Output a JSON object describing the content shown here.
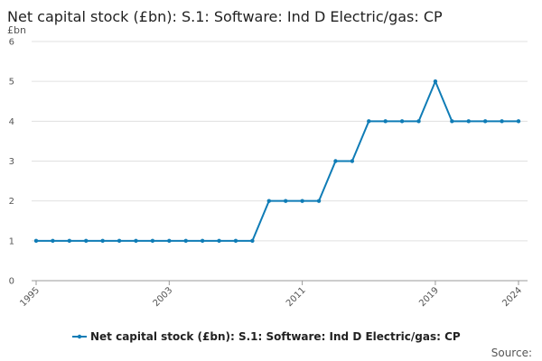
{
  "chart_data": {
    "type": "line",
    "title": "Net capital stock (£bn): S.1: Software: Ind D Electric/gas: CP",
    "ylabel": "£bn",
    "ylim": [
      0,
      6
    ],
    "yticks": [
      0,
      1,
      2,
      3,
      4,
      5,
      6
    ],
    "xlim": [
      1995,
      2024
    ],
    "xticks": [
      1995,
      2003,
      2011,
      2019,
      2024
    ],
    "grid": true,
    "legend_position": "bottom",
    "series": [
      {
        "name": "Net capital stock (£bn): S.1: Software: Ind D Electric/gas: CP",
        "color": "#0f7cb6",
        "x": [
          1995,
          1996,
          1997,
          1998,
          1999,
          2000,
          2001,
          2002,
          2003,
          2004,
          2005,
          2006,
          2007,
          2008,
          2009,
          2010,
          2011,
          2012,
          2013,
          2014,
          2015,
          2016,
          2017,
          2018,
          2019,
          2020,
          2021,
          2022,
          2023,
          2024
        ],
        "values": [
          1,
          1,
          1,
          1,
          1,
          1,
          1,
          1,
          1,
          1,
          1,
          1,
          1,
          1,
          2,
          2,
          2,
          2,
          3,
          3,
          4,
          4,
          4,
          4,
          5,
          4,
          4,
          4,
          4,
          4
        ]
      }
    ]
  },
  "source_label": "Source:"
}
